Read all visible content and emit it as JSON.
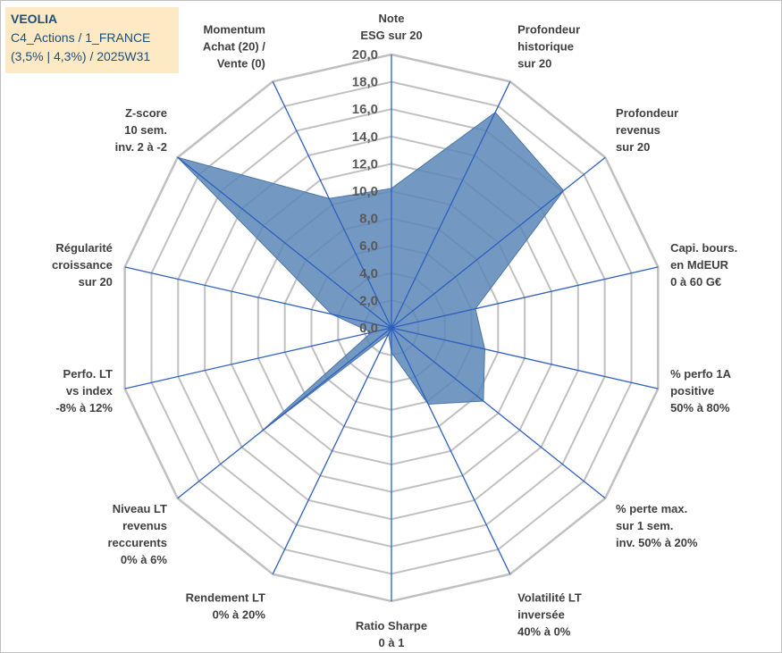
{
  "header": {
    "line1": "VEOLIA",
    "line2": "C4_Actions / 1_FRANCE",
    "line3": "(3,5% | 4,3%) / 2025W31"
  },
  "colors": {
    "fill": "#5b86b6",
    "stroke": "#4a76a8",
    "axis": "#2f5fbf",
    "grid": "#c0c0c0"
  },
  "chart_data": {
    "type": "radar",
    "rmax": 20,
    "ticks": [
      "0,0",
      "2,0",
      "4,0",
      "6,0",
      "8,0",
      "10,0",
      "12,0",
      "14,0",
      "16,0",
      "18,0",
      "20,0"
    ],
    "axes": [
      {
        "label": [
          "Note",
          "ESG sur 20"
        ],
        "value": 10.2
      },
      {
        "label": [
          "Profondeur",
          "historique",
          "sur 20"
        ],
        "value": 17.5
      },
      {
        "label": [
          "Profondeur",
          "revenus",
          "sur 20"
        ],
        "value": 16.1
      },
      {
        "label": [
          "Capi. bours.",
          "en MdEUR",
          "0 à 60 G€"
        ],
        "value": 6.3
      },
      {
        "label": [
          "% perfo 1A",
          "positive",
          "50% à 80%"
        ],
        "value": 7.0
      },
      {
        "label": [
          "% perte max.",
          "sur 1 sem.",
          "inv. 50% à 20%"
        ],
        "value": 8.6
      },
      {
        "label": [
          "Volatilité LT",
          "inversée",
          "40% à 0%"
        ],
        "value": 6.2
      },
      {
        "label": [
          "Ratio Sharpe",
          "0 à 1"
        ],
        "value": 1.8
      },
      {
        "label": [
          "Rendement LT",
          "0% à 20%"
        ],
        "value": 0.5
      },
      {
        "label": [
          "Niveau LT",
          "revenus",
          "reccurents",
          "0% à 6%"
        ],
        "value": 12.3
      },
      {
        "label": [
          "Perfo. LT",
          "vs index",
          "-8% à 12%"
        ],
        "value": 1.5
      },
      {
        "label": [
          "Régularité",
          "croissance",
          "sur 20"
        ],
        "value": 4.5
      },
      {
        "label": [
          "Z-score",
          "10 sem.",
          "inv. 2 à -2"
        ],
        "value": 20.0
      },
      {
        "label": [
          "Momentum",
          "Achat (20) /",
          "Vente (0)"
        ],
        "value": 10.5
      }
    ]
  }
}
